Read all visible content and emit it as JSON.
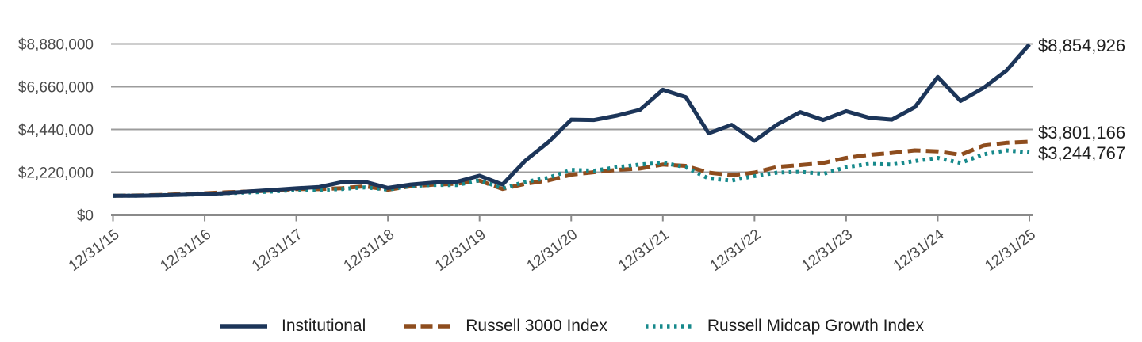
{
  "chart_data": {
    "type": "line",
    "title": "",
    "xlabel": "",
    "ylabel": "",
    "x_start": "12/31/15",
    "x_end": "12/31/25",
    "points_per_year": 4,
    "x_tick_labels": [
      "12/31/15",
      "12/31/16",
      "12/31/17",
      "12/31/18",
      "12/31/19",
      "12/31/20",
      "12/31/21",
      "12/31/22",
      "12/31/23",
      "12/31/24",
      "12/31/25"
    ],
    "y_tick_labels": [
      "$0",
      "$2,220,000",
      "$4,440,000",
      "$6,660,000",
      "$8,880,000"
    ],
    "y_tick_values": [
      0,
      2220000,
      4440000,
      6660000,
      8880000
    ],
    "ylim": [
      0,
      8880000
    ],
    "grid": "horizontal",
    "legend_position": "bottom",
    "axis_color": "#8a8a8a",
    "grid_color": "#9c9c9c",
    "tick_label_color": "#4a4a4a",
    "series": [
      {
        "name": "Institutional",
        "color": "#1c3559",
        "style": "solid",
        "end_label": "$8,854,926",
        "final_value": 8854926,
        "values": [
          1000000,
          1000000,
          1020000,
          1050000,
          1080000,
          1140000,
          1220000,
          1300000,
          1380000,
          1450000,
          1700000,
          1720000,
          1400000,
          1580000,
          1680000,
          1720000,
          2040000,
          1580000,
          2820000,
          3780000,
          4950000,
          4930000,
          5160000,
          5460000,
          6500000,
          6120000,
          4240000,
          4680000,
          3850000,
          4700000,
          5340000,
          4930000,
          5390000,
          5050000,
          4950000,
          5600000,
          7160000,
          5920000,
          6600000,
          7500000,
          8854926
        ]
      },
      {
        "name": "Russell 3000 Index",
        "color": "#8e4d1e",
        "style": "dashed",
        "end_label": "$3,801,166",
        "final_value": 3801166,
        "values": [
          1000000,
          1010000,
          1035000,
          1080000,
          1125000,
          1180000,
          1220000,
          1270000,
          1350000,
          1340000,
          1390000,
          1490000,
          1310000,
          1490000,
          1570000,
          1620000,
          1780000,
          1350000,
          1620000,
          1790000,
          2090000,
          2220000,
          2340000,
          2410000,
          2620000,
          2550000,
          2200000,
          2060000,
          2200000,
          2500000,
          2590000,
          2700000,
          2960000,
          3120000,
          3220000,
          3350000,
          3300000,
          3120000,
          3600000,
          3750000,
          3801166
        ]
      },
      {
        "name": "Russell Midcap Growth Index",
        "color": "#16898b",
        "style": "dotted",
        "end_label": "$3,244,767",
        "final_value": 3244767,
        "values": [
          1000000,
          1005000,
          1025000,
          1050000,
          1075000,
          1130000,
          1170000,
          1220000,
          1300000,
          1300000,
          1350000,
          1430000,
          1320000,
          1500000,
          1560000,
          1550000,
          1800000,
          1380000,
          1720000,
          1930000,
          2340000,
          2300000,
          2480000,
          2620000,
          2710000,
          2480000,
          1890000,
          1790000,
          2020000,
          2200000,
          2240000,
          2130000,
          2480000,
          2650000,
          2620000,
          2800000,
          2960000,
          2700000,
          3150000,
          3350000,
          3244767
        ]
      }
    ]
  }
}
